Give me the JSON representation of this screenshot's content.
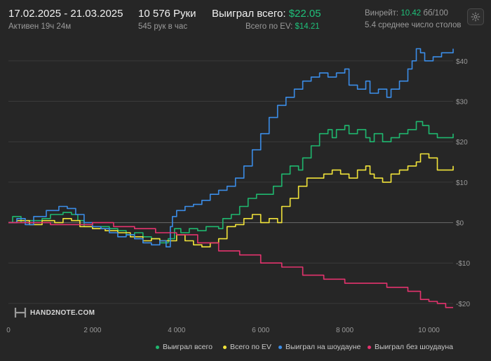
{
  "header": {
    "date_range": "17.02.2025 - 21.03.2025",
    "active_time": "Активен 19ч 24м",
    "hands": "10 576 Руки",
    "hands_per_hour": "545 рук в час",
    "won_total_label": "Выиграл всего:",
    "won_total_value": "$22.05",
    "ev_total_label": "Всего по EV:",
    "ev_total_value": "$14.21",
    "winrate_label": "Винрейт:",
    "winrate_value": "10.42",
    "winrate_unit": "бб/100",
    "avg_tables": "5.4 среднее число столов",
    "settings_icon": "gear-icon"
  },
  "logo": {
    "text": "HAND2NOTE.COM"
  },
  "legend": [
    {
      "label": "Выиграл всего",
      "color": "#1fb86f"
    },
    {
      "label": "Всего по EV",
      "color": "#f2e43a"
    },
    {
      "label": "Выиграл на шоудауне",
      "color": "#3b8de8"
    },
    {
      "label": "Выиграл без шоудауна",
      "color": "#e4336e"
    }
  ],
  "chart_data": {
    "type": "line",
    "xlim": [
      0,
      10576
    ],
    "ylim": [
      -24,
      45
    ],
    "x_ticks": [
      0,
      2000,
      4000,
      6000,
      8000,
      10000
    ],
    "x_tick_labels": [
      "0",
      "2 000",
      "4 000",
      "6 000",
      "8 000",
      "10 000"
    ],
    "y_ticks": [
      40,
      30,
      20,
      10,
      0,
      -10,
      -20
    ],
    "y_tick_labels": [
      "$40",
      "$30",
      "$20",
      "$10",
      "$0",
      "-$10",
      "-$20"
    ],
    "grid": true,
    "legend_position": "bottom",
    "series": [
      {
        "name": "Выиграл всего",
        "color": "#1fb86f",
        "points": [
          [
            0,
            0
          ],
          [
            100,
            1.5
          ],
          [
            300,
            0
          ],
          [
            500,
            0.5
          ],
          [
            800,
            1
          ],
          [
            1000,
            2
          ],
          [
            1300,
            2.5
          ],
          [
            1500,
            2
          ],
          [
            1650,
            0.5
          ],
          [
            1800,
            -1
          ],
          [
            2000,
            -1.5
          ],
          [
            2200,
            -1
          ],
          [
            2400,
            -1.5
          ],
          [
            2600,
            -2
          ],
          [
            2800,
            -3
          ],
          [
            3000,
            -2.5
          ],
          [
            3200,
            -3.5
          ],
          [
            3400,
            -4
          ],
          [
            3600,
            -5
          ],
          [
            3800,
            -4
          ],
          [
            3950,
            -1.5
          ],
          [
            4100,
            -2.5
          ],
          [
            4300,
            -1.5
          ],
          [
            4500,
            -2
          ],
          [
            4700,
            -1
          ],
          [
            5000,
            -1.5
          ],
          [
            5100,
            1
          ],
          [
            5300,
            2
          ],
          [
            5500,
            4
          ],
          [
            5700,
            6
          ],
          [
            5900,
            7
          ],
          [
            6100,
            7
          ],
          [
            6300,
            9
          ],
          [
            6500,
            12
          ],
          [
            6700,
            14
          ],
          [
            6900,
            13
          ],
          [
            7000,
            16
          ],
          [
            7200,
            19
          ],
          [
            7400,
            22
          ],
          [
            7600,
            23
          ],
          [
            7700,
            21
          ],
          [
            7800,
            23
          ],
          [
            8000,
            24
          ],
          [
            8100,
            22
          ],
          [
            8300,
            23
          ],
          [
            8500,
            21
          ],
          [
            8600,
            20
          ],
          [
            8700,
            22
          ],
          [
            8900,
            20
          ],
          [
            9100,
            21
          ],
          [
            9300,
            22
          ],
          [
            9500,
            23
          ],
          [
            9700,
            25
          ],
          [
            9850,
            24
          ],
          [
            10000,
            22
          ],
          [
            10200,
            21
          ],
          [
            10400,
            21
          ],
          [
            10576,
            22
          ]
        ]
      },
      {
        "name": "Всего по EV",
        "color": "#f2e43a",
        "points": [
          [
            0,
            0
          ],
          [
            200,
            0.5
          ],
          [
            500,
            -0.5
          ],
          [
            800,
            0.5
          ],
          [
            1100,
            0
          ],
          [
            1300,
            1
          ],
          [
            1500,
            0.5
          ],
          [
            1700,
            -1
          ],
          [
            2000,
            -1.5
          ],
          [
            2300,
            -2
          ],
          [
            2600,
            -2.5
          ],
          [
            2900,
            -3.5
          ],
          [
            3200,
            -4.5
          ],
          [
            3400,
            -4
          ],
          [
            3600,
            -4.5
          ],
          [
            3800,
            -4.5
          ],
          [
            4000,
            -3
          ],
          [
            4200,
            -4.5
          ],
          [
            4400,
            -5.5
          ],
          [
            4600,
            -6
          ],
          [
            4800,
            -5
          ],
          [
            5000,
            -4
          ],
          [
            5200,
            -1
          ],
          [
            5400,
            -0.5
          ],
          [
            5600,
            1
          ],
          [
            5800,
            2
          ],
          [
            6000,
            0
          ],
          [
            6200,
            1
          ],
          [
            6400,
            0
          ],
          [
            6500,
            4
          ],
          [
            6700,
            6
          ],
          [
            6900,
            9
          ],
          [
            7100,
            11
          ],
          [
            7300,
            11
          ],
          [
            7500,
            12
          ],
          [
            7700,
            13
          ],
          [
            7900,
            12
          ],
          [
            8100,
            11
          ],
          [
            8300,
            13
          ],
          [
            8500,
            14
          ],
          [
            8600,
            12
          ],
          [
            8700,
            11
          ],
          [
            8900,
            10
          ],
          [
            9100,
            12
          ],
          [
            9300,
            13
          ],
          [
            9500,
            14
          ],
          [
            9700,
            15
          ],
          [
            9800,
            17
          ],
          [
            10000,
            16
          ],
          [
            10200,
            13
          ],
          [
            10400,
            13
          ],
          [
            10576,
            14
          ]
        ]
      },
      {
        "name": "Выиграл на шоудауне",
        "color": "#3b8de8",
        "points": [
          [
            0,
            0
          ],
          [
            200,
            1
          ],
          [
            400,
            -0.5
          ],
          [
            600,
            1.5
          ],
          [
            900,
            3
          ],
          [
            1200,
            4
          ],
          [
            1400,
            3.5
          ],
          [
            1600,
            2
          ],
          [
            1800,
            0
          ],
          [
            2000,
            -1
          ],
          [
            2200,
            -1.5
          ],
          [
            2400,
            -2.5
          ],
          [
            2600,
            -3.5
          ],
          [
            2800,
            -3
          ],
          [
            3000,
            -4
          ],
          [
            3200,
            -5
          ],
          [
            3400,
            -5.5
          ],
          [
            3600,
            -4.5
          ],
          [
            3750,
            -6
          ],
          [
            3850,
            -1
          ],
          [
            3900,
            1.5
          ],
          [
            4000,
            3
          ],
          [
            4200,
            4
          ],
          [
            4400,
            4.5
          ],
          [
            4600,
            5.5
          ],
          [
            4800,
            7
          ],
          [
            5000,
            8
          ],
          [
            5200,
            9
          ],
          [
            5400,
            11
          ],
          [
            5600,
            14
          ],
          [
            5800,
            18
          ],
          [
            6000,
            22
          ],
          [
            6200,
            26
          ],
          [
            6400,
            29
          ],
          [
            6600,
            31
          ],
          [
            6800,
            33
          ],
          [
            7000,
            35
          ],
          [
            7200,
            36
          ],
          [
            7400,
            37
          ],
          [
            7600,
            36
          ],
          [
            7800,
            37
          ],
          [
            8000,
            38
          ],
          [
            8100,
            34
          ],
          [
            8300,
            33
          ],
          [
            8500,
            35
          ],
          [
            8600,
            32
          ],
          [
            8800,
            33
          ],
          [
            9000,
            31
          ],
          [
            9100,
            33
          ],
          [
            9300,
            35
          ],
          [
            9500,
            38
          ],
          [
            9600,
            40
          ],
          [
            9700,
            43
          ],
          [
            9800,
            42
          ],
          [
            9900,
            40
          ],
          [
            10100,
            41
          ],
          [
            10300,
            42
          ],
          [
            10500,
            42
          ],
          [
            10576,
            43
          ]
        ]
      },
      {
        "name": "Выиграл без шоудауна",
        "color": "#e4336e",
        "points": [
          [
            0,
            0
          ],
          [
            500,
            0
          ],
          [
            1000,
            -0.5
          ],
          [
            1500,
            -0.5
          ],
          [
            2000,
            0
          ],
          [
            2500,
            -1
          ],
          [
            3000,
            -1.5
          ],
          [
            3500,
            -2.5
          ],
          [
            4000,
            -3
          ],
          [
            4500,
            -5
          ],
          [
            5000,
            -7
          ],
          [
            5500,
            -8
          ],
          [
            6000,
            -10
          ],
          [
            6500,
            -11
          ],
          [
            7000,
            -13
          ],
          [
            7500,
            -14
          ],
          [
            8000,
            -15
          ],
          [
            8500,
            -15
          ],
          [
            9000,
            -16
          ],
          [
            9500,
            -17
          ],
          [
            9800,
            -19
          ],
          [
            10000,
            -19.5
          ],
          [
            10200,
            -20
          ],
          [
            10400,
            -21
          ],
          [
            10576,
            -21
          ]
        ]
      }
    ]
  }
}
